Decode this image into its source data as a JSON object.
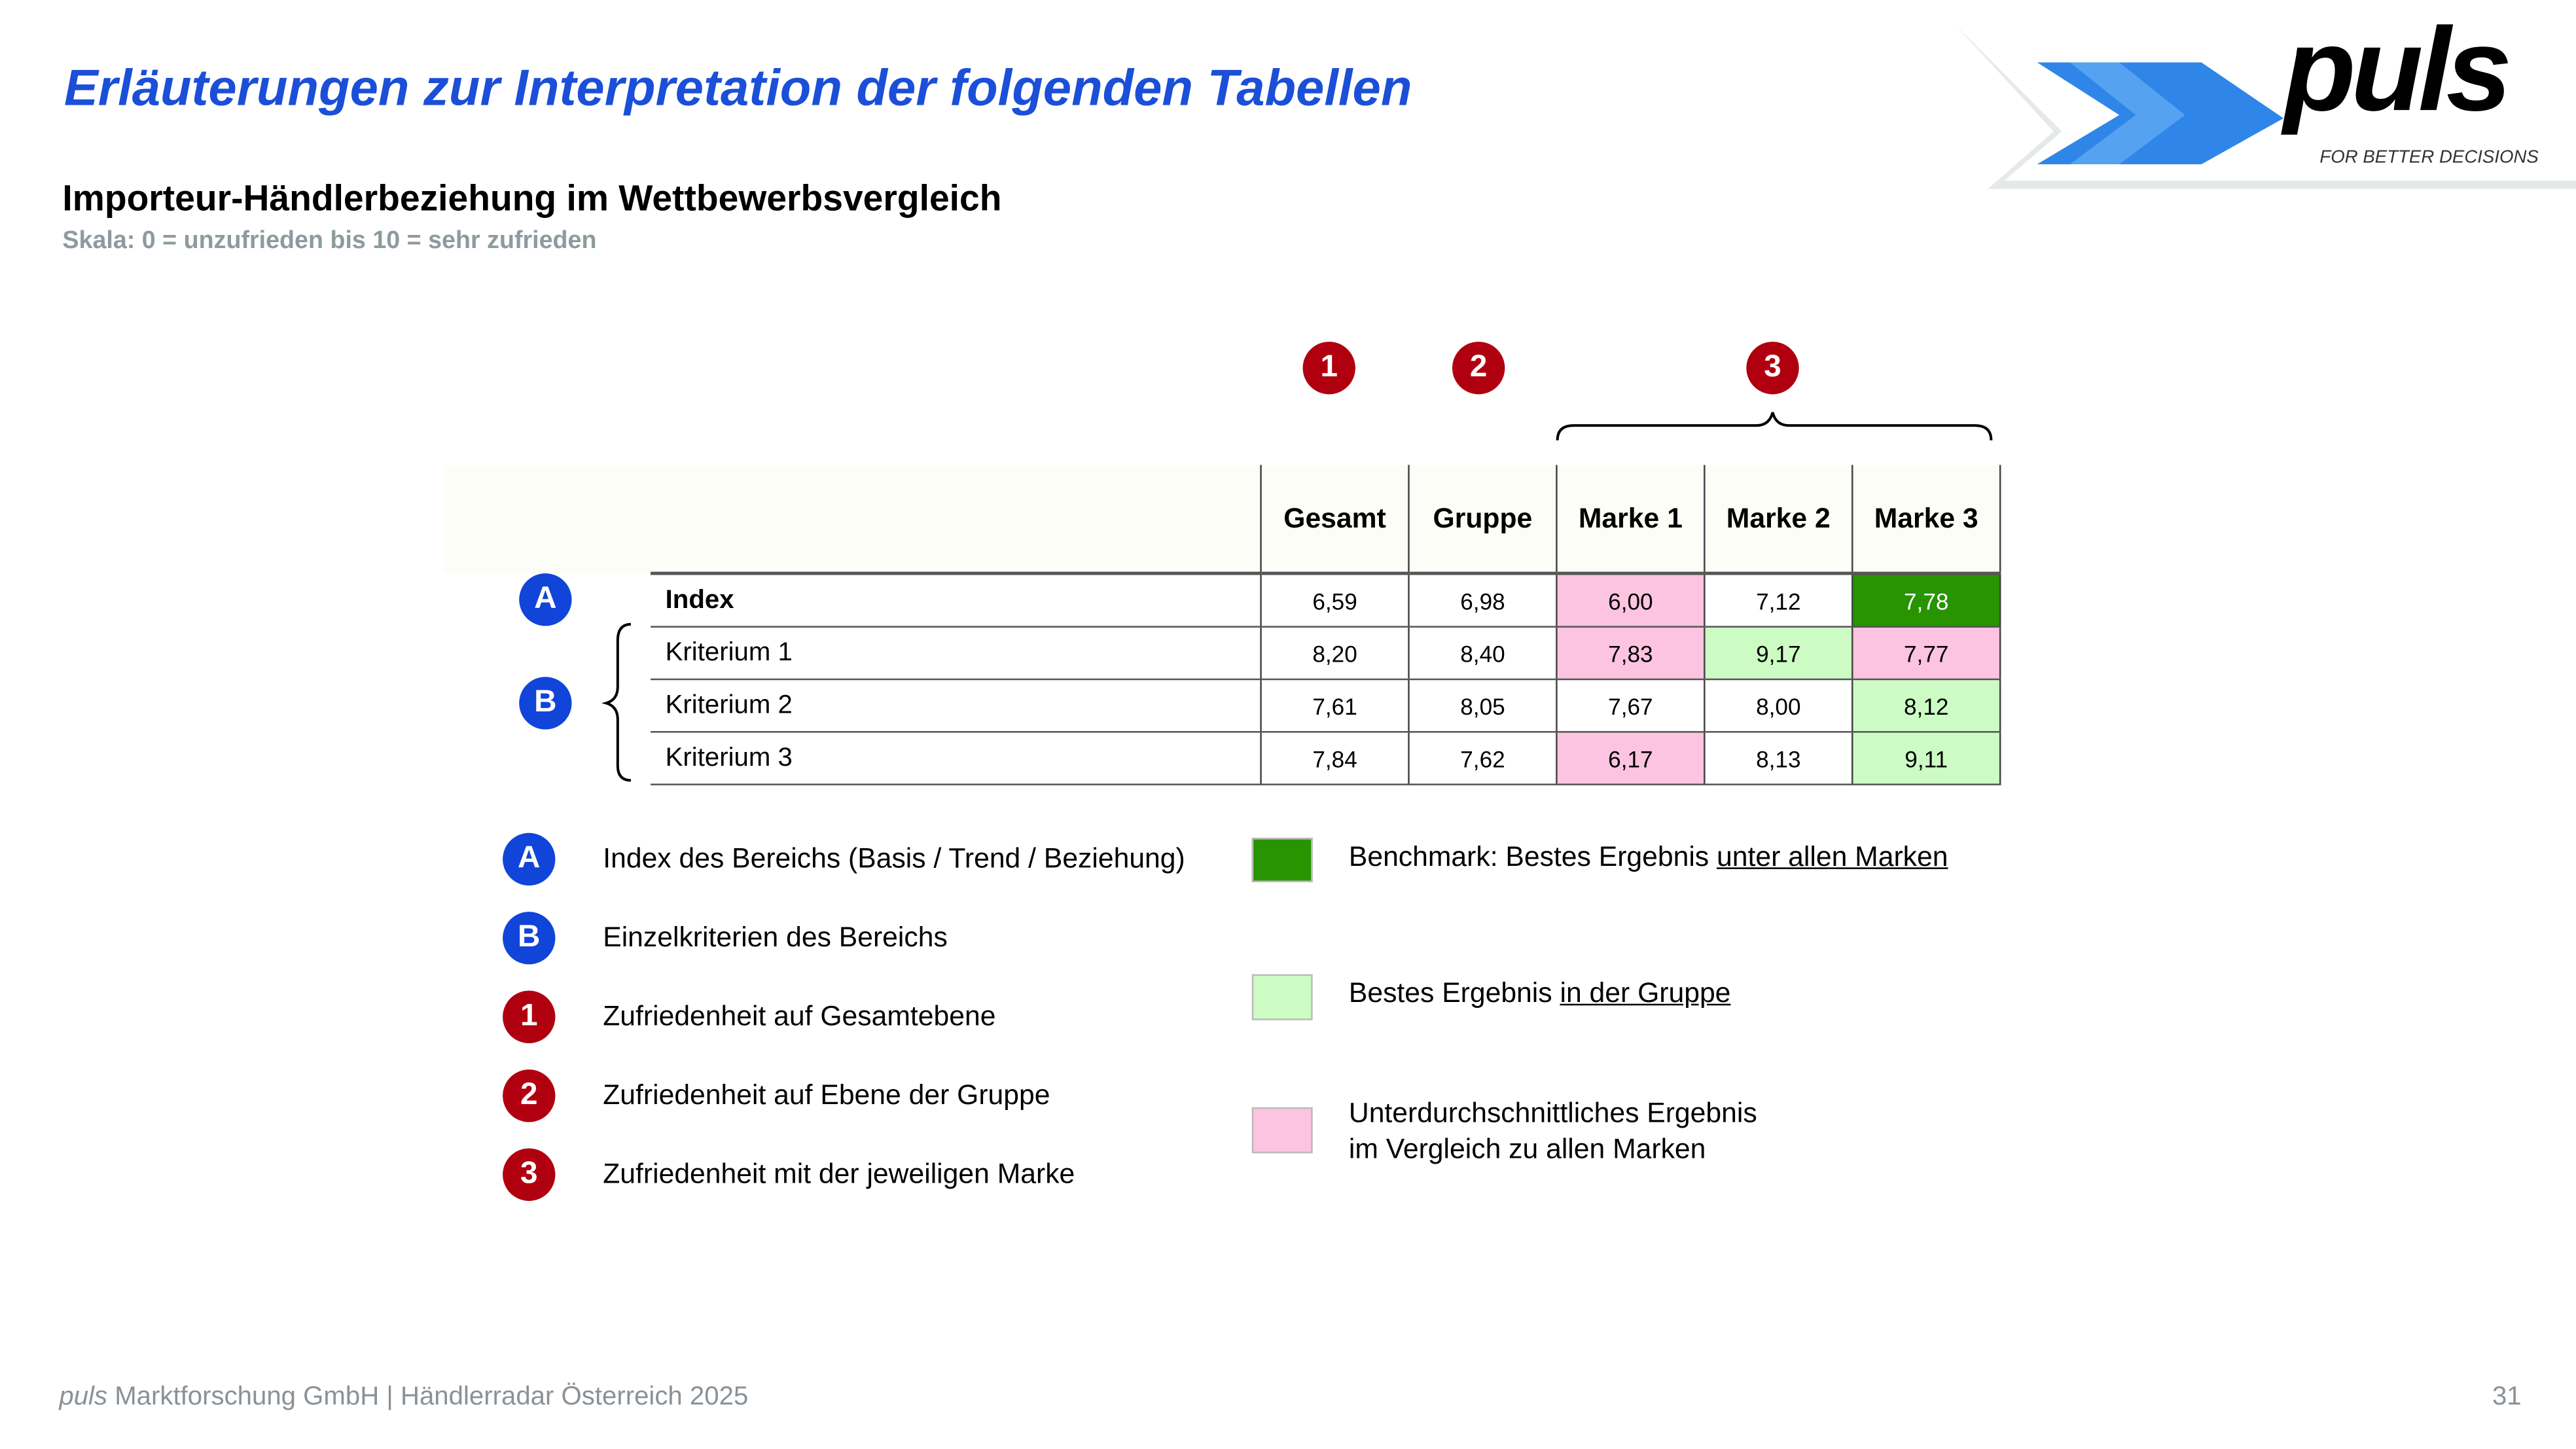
{
  "header": {
    "title": "Erläuterungen zur Interpretation der folgenden Tabellen",
    "subtitle": "Importeur-Händlerbeziehung im Wettbewerbsvergleich",
    "scale_note": "Skala: 0 = unzufrieden bis 10 = sehr zufrieden",
    "logo_text": "puls",
    "logo_tagline": "FOR BETTER DECISIONS"
  },
  "markers": {
    "one": "1",
    "two": "2",
    "three": "3",
    "a": "A",
    "b": "B"
  },
  "table": {
    "columns": [
      "Gesamt",
      "Gruppe",
      "Marke 1",
      "Marke 2",
      "Marke 3"
    ],
    "rows": [
      {
        "label": "Index",
        "values": [
          "6,59",
          "6,98",
          "6,00",
          "7,12",
          "7,78"
        ],
        "highlight": [
          "",
          "",
          "below",
          "",
          "benchmark"
        ]
      },
      {
        "label": "Kriterium 1",
        "values": [
          "8,20",
          "8,40",
          "7,83",
          "9,17",
          "7,77"
        ],
        "highlight": [
          "",
          "",
          "below",
          "best",
          "below"
        ]
      },
      {
        "label": "Kriterium 2",
        "values": [
          "7,61",
          "8,05",
          "7,67",
          "8,00",
          "8,12"
        ],
        "highlight": [
          "",
          "",
          "",
          "",
          "best"
        ]
      },
      {
        "label": "Kriterium 3",
        "values": [
          "7,84",
          "7,62",
          "6,17",
          "8,13",
          "9,11"
        ],
        "highlight": [
          "",
          "",
          "below",
          "",
          "best"
        ]
      }
    ]
  },
  "legend_left": [
    {
      "marker": "A",
      "text": "Index des Bereichs (Basis / Trend / Beziehung)"
    },
    {
      "marker": "B",
      "text": "Einzelkriterien des Bereichs"
    },
    {
      "marker": "1",
      "text": "Zufriedenheit auf Gesamtebene"
    },
    {
      "marker": "2",
      "text": "Zufriedenheit auf Ebene der Gruppe"
    },
    {
      "marker": "3",
      "text": "Zufriedenheit mit der jeweiligen Marke"
    }
  ],
  "legend_right": {
    "benchmark_prefix": "Benchmark: Bestes Ergebnis ",
    "benchmark_underlined": "unter allen Marken",
    "best_prefix": "Bestes Ergebnis ",
    "best_underlined": "in der Gruppe",
    "below_line1": "Unterdurchschnittliches Ergebnis",
    "below_line2": "im Vergleich zu allen Marken"
  },
  "colors": {
    "benchmark": "#279400",
    "best": "#ccfcc4",
    "below": "#fcc4e0",
    "accent_blue": "#1b4fd8",
    "marker_red": "#b0000f"
  },
  "footer": {
    "company_italic": "puls",
    "text": " Marktforschung GmbH | Händlerradar Österreich 2025",
    "page": "31"
  }
}
